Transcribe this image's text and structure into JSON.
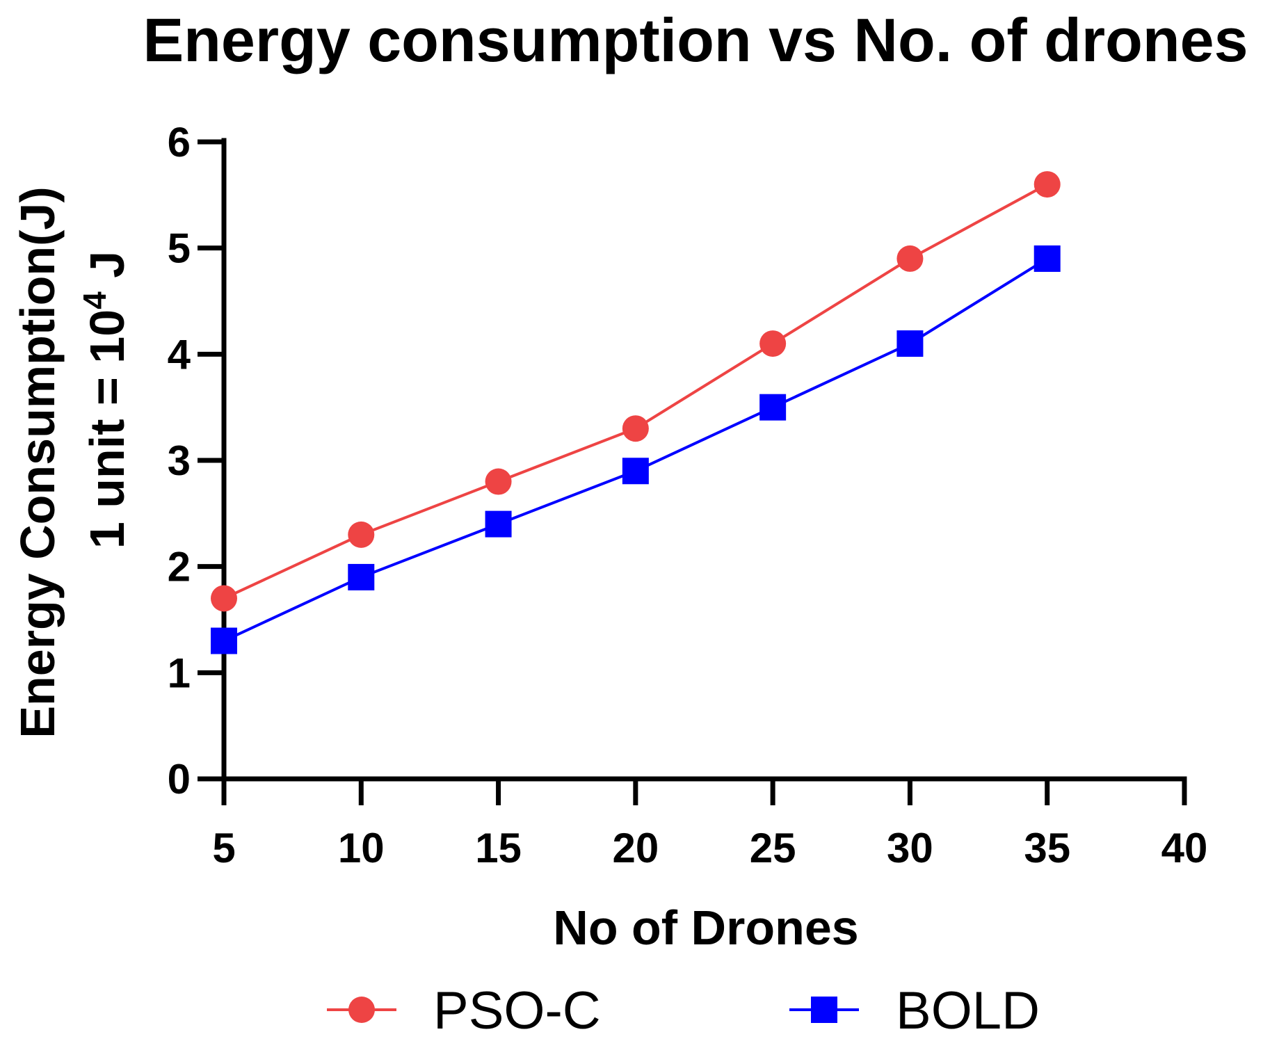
{
  "chart_data": {
    "type": "line",
    "title": "Energy consumption vs No. of drones",
    "xlabel": "No of Drones",
    "ylabel_line1": "Energy Consumption(J)",
    "ylabel_line2_prefix": "1 unit = 10",
    "ylabel_line2_exp": "4",
    "ylabel_line2_suffix": " J",
    "x": [
      5,
      10,
      15,
      20,
      25,
      30,
      35
    ],
    "xlim": [
      5,
      40
    ],
    "ylim": [
      0,
      6
    ],
    "xticks": [
      "5",
      "10",
      "15",
      "20",
      "25",
      "30",
      "35",
      "40"
    ],
    "yticks": [
      "0",
      "1",
      "2",
      "3",
      "4",
      "5",
      "6"
    ],
    "grid": false,
    "legend_position": "bottom",
    "series": [
      {
        "name": "PSO-C",
        "marker": "circle",
        "color": "#ee4444",
        "values": [
          1.7,
          2.3,
          2.8,
          3.3,
          4.1,
          4.9,
          5.6
        ]
      },
      {
        "name": "BOLD",
        "marker": "square",
        "color": "#0000ff",
        "values": [
          1.3,
          1.9,
          2.4,
          2.9,
          3.5,
          4.1,
          4.9
        ]
      }
    ]
  }
}
